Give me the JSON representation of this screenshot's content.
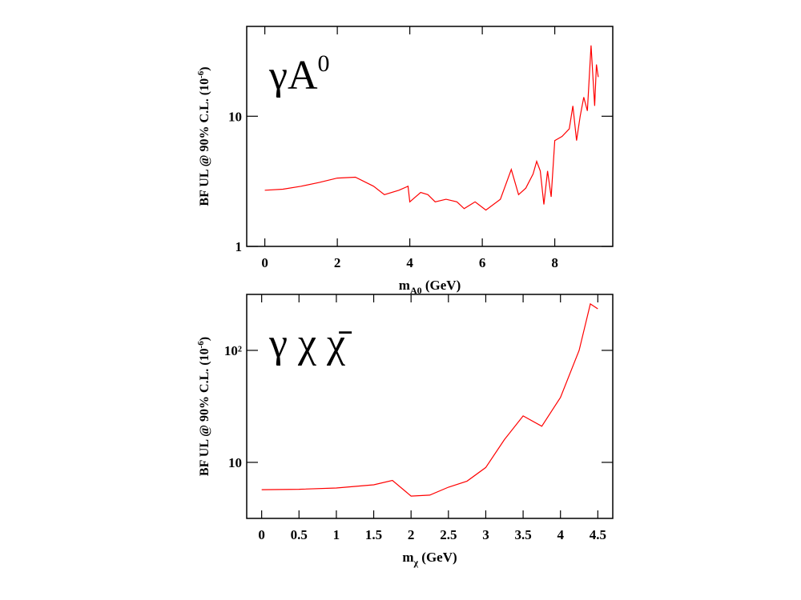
{
  "chart_data": [
    {
      "type": "line",
      "log_y": true,
      "color": "#ff0000",
      "annotation": {
        "main": "γA",
        "sup": "0"
      },
      "x_label": {
        "main": "m",
        "sub": "A0",
        "rest": " (GeV)"
      },
      "y_label": {
        "main": "BF UL  @ 90% C.L. (10",
        "sup": "-6",
        "rest": ")"
      },
      "xlim": [
        -0.5,
        9.6
      ],
      "xticks": [
        0,
        2,
        4,
        6,
        8
      ],
      "ylim": [
        1,
        49
      ],
      "yticks": [
        1,
        10
      ],
      "x": [
        0,
        0.5,
        1,
        1.5,
        2,
        2.5,
        3,
        3.3,
        3.7,
        3.95,
        4.0,
        4.3,
        4.5,
        4.7,
        5.0,
        5.3,
        5.5,
        5.8,
        6.1,
        6.5,
        6.8,
        7.0,
        7.2,
        7.4,
        7.5,
        7.6,
        7.7,
        7.8,
        7.9,
        8.0,
        8.2,
        8.4,
        8.5,
        8.6,
        8.7,
        8.8,
        8.9,
        9.0,
        9.1,
        9.15,
        9.2
      ],
      "values": [
        2.7,
        2.75,
        2.9,
        3.1,
        3.35,
        3.4,
        2.9,
        2.5,
        2.7,
        2.9,
        2.2,
        2.6,
        2.5,
        2.2,
        2.3,
        2.2,
        1.95,
        2.2,
        1.9,
        2.3,
        3.9,
        2.5,
        2.8,
        3.6,
        4.5,
        3.8,
        2.1,
        3.8,
        2.4,
        6.5,
        7,
        8,
        12,
        6.5,
        10,
        14,
        11,
        35,
        12,
        25,
        20
      ]
    },
    {
      "type": "line",
      "log_y": true,
      "color": "#ff0000",
      "annotation": {
        "main": "γ χ χ̄"
      },
      "x_label": {
        "main": "m",
        "sub": "χ",
        "rest": " (GeV)"
      },
      "y_label": {
        "main": "BF UL  @ 90% C.L. (10",
        "sup": "-6",
        "rest": ")"
      },
      "xlim": [
        -0.2,
        4.7
      ],
      "xticks": [
        0,
        0.5,
        1,
        1.5,
        2,
        2.5,
        3,
        3.5,
        4,
        4.5
      ],
      "ylim": [
        3.16,
        316
      ],
      "yticks": [
        10,
        {
          "value": 100,
          "label": "10²"
        }
      ],
      "x": [
        0,
        0.5,
        1,
        1.5,
        1.75,
        2.0,
        2.25,
        2.5,
        2.75,
        3.0,
        3.25,
        3.5,
        3.75,
        4.0,
        4.25,
        4.4,
        4.5
      ],
      "values": [
        5.7,
        5.75,
        5.9,
        6.3,
        6.9,
        5.0,
        5.1,
        6.0,
        6.8,
        9,
        16,
        26,
        21,
        38,
        100,
        260,
        235
      ]
    }
  ]
}
